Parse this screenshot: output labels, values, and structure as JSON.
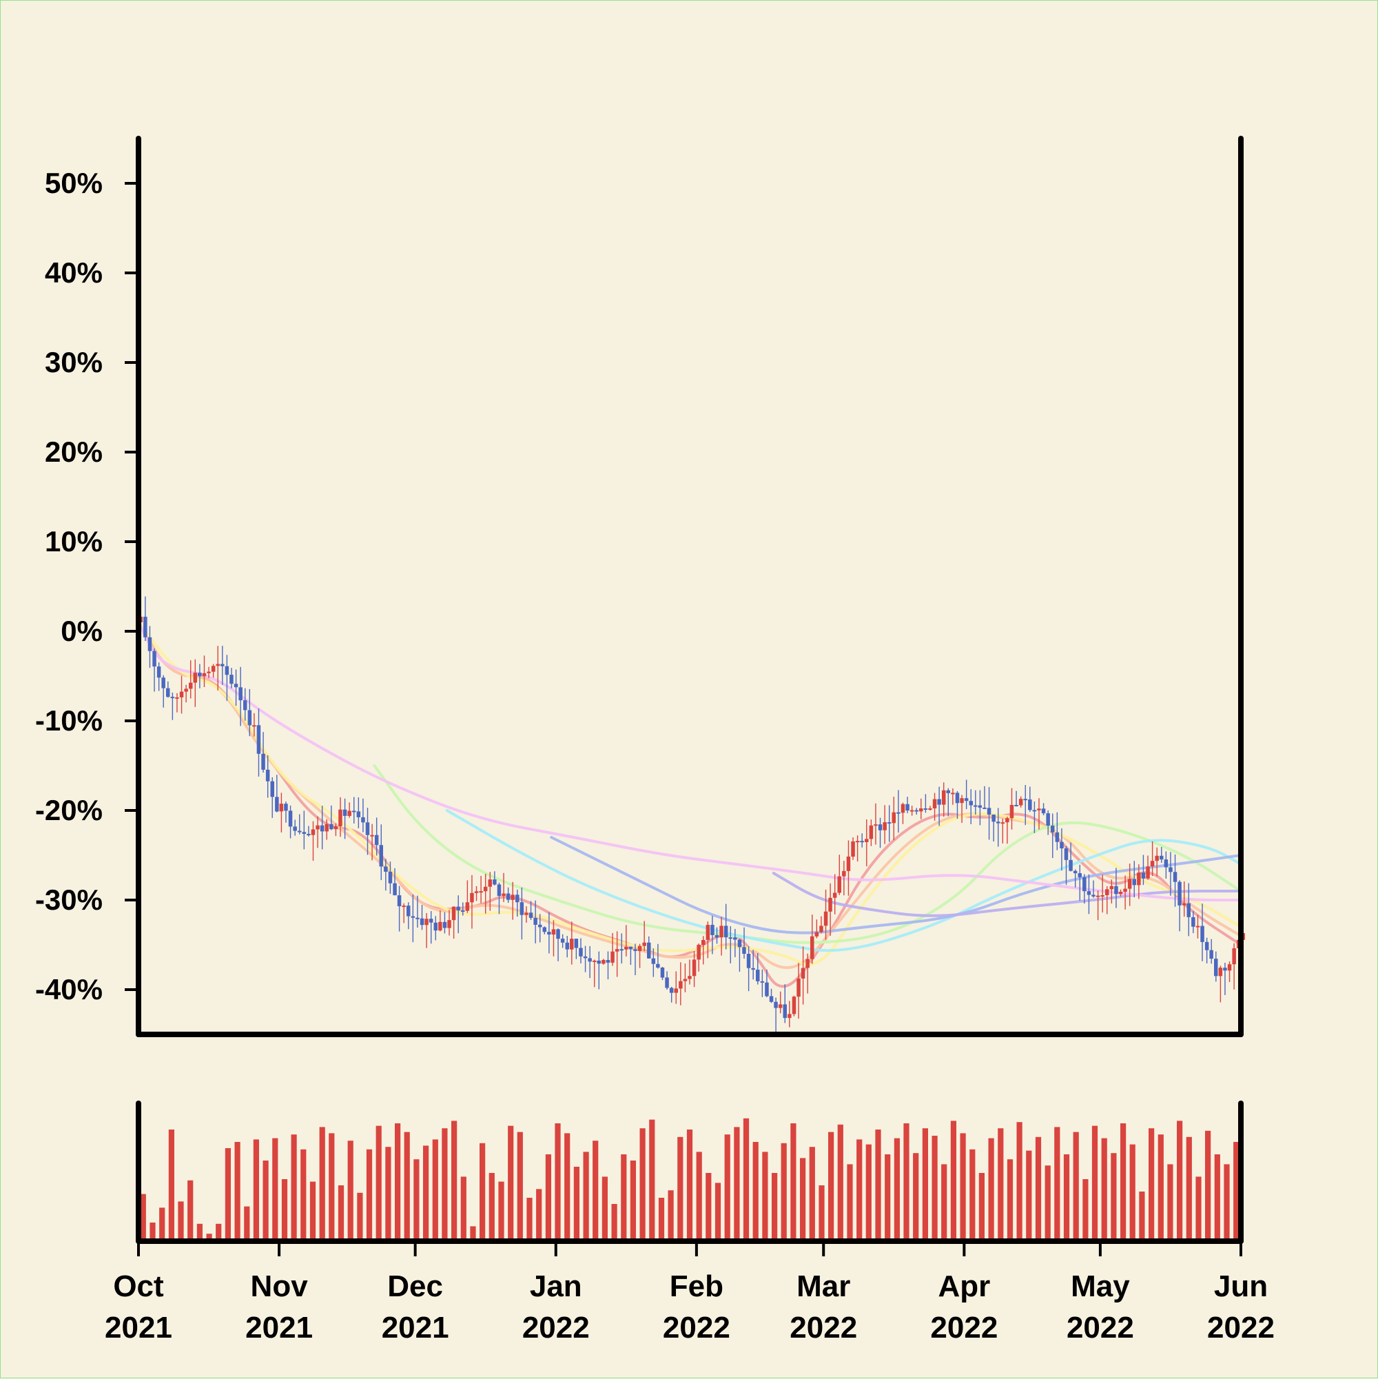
{
  "colors": {
    "background": "#f7f1e0",
    "border": "#8fe58f",
    "up": "#d9443e",
    "down": "#4a68c0",
    "volume": "#d9443e",
    "axis": "#000000"
  },
  "chart_data": [
    {
      "type": "candlestick",
      "panel": "price",
      "title": "",
      "xlabel": "",
      "ylabel": "",
      "xlim": [
        "2021-10-01",
        "2022-06-01"
      ],
      "ylim": [
        -45,
        55
      ],
      "y_ticks": [
        50,
        40,
        30,
        20,
        10,
        0,
        -10,
        -20,
        -30,
        -40
      ],
      "y_tick_labels": [
        "50%",
        "40%",
        "30%",
        "20%",
        "10%",
        "0%",
        "-10%",
        "-20%",
        "-30%",
        "-40%"
      ],
      "x_ticks": [
        "2021-10-01",
        "2021-11-01",
        "2021-12-01",
        "2022-01-01",
        "2022-02-01",
        "2022-03-01",
        "2022-04-01",
        "2022-05-01",
        "2022-06-01"
      ],
      "x_tick_labels": [
        [
          "Oct",
          "2021"
        ],
        [
          "Nov",
          "2021"
        ],
        [
          "Dec",
          "2021"
        ],
        [
          "Jan",
          "2022"
        ],
        [
          "Feb",
          "2022"
        ],
        [
          "Mar",
          "2022"
        ],
        [
          "Apr",
          "2022"
        ],
        [
          "May",
          "2022"
        ],
        [
          "Jun",
          "2022"
        ]
      ],
      "grid": false,
      "legend": "none",
      "price_path": [
        [
          "2021-10-01",
          1
        ],
        [
          "2021-10-05",
          -5
        ],
        [
          "2021-10-08",
          -8
        ],
        [
          "2021-10-12",
          -5
        ],
        [
          "2021-10-18",
          -4
        ],
        [
          "2021-10-22",
          -6
        ],
        [
          "2021-10-26",
          -11
        ],
        [
          "2021-10-30",
          -19
        ],
        [
          "2021-11-05",
          -22
        ],
        [
          "2021-11-10",
          -22
        ],
        [
          "2021-11-16",
          -20
        ],
        [
          "2021-11-22",
          -24
        ],
        [
          "2021-11-26",
          -30
        ],
        [
          "2021-12-01",
          -32
        ],
        [
          "2021-12-06",
          -33
        ],
        [
          "2021-12-10",
          -31
        ],
        [
          "2021-12-16",
          -28
        ],
        [
          "2021-12-22",
          -30
        ],
        [
          "2021-12-28",
          -33
        ],
        [
          "2022-01-04",
          -35
        ],
        [
          "2022-01-10",
          -37
        ],
        [
          "2022-01-15",
          -36
        ],
        [
          "2022-01-20",
          -35
        ],
        [
          "2022-01-26",
          -40
        ],
        [
          "2022-01-30",
          -38
        ],
        [
          "2022-02-03",
          -33
        ],
        [
          "2022-02-08",
          -34
        ],
        [
          "2022-02-13",
          -38
        ],
        [
          "2022-02-18",
          -42
        ],
        [
          "2022-02-21",
          -43
        ],
        [
          "2022-02-25",
          -36
        ],
        [
          "2022-03-02",
          -30
        ],
        [
          "2022-03-07",
          -24
        ],
        [
          "2022-03-12",
          -22
        ],
        [
          "2022-03-18",
          -20
        ],
        [
          "2022-03-24",
          -19
        ],
        [
          "2022-03-29",
          -18
        ],
        [
          "2022-04-03",
          -20
        ],
        [
          "2022-04-08",
          -21
        ],
        [
          "2022-04-13",
          -19
        ],
        [
          "2022-04-18",
          -20
        ],
        [
          "2022-04-24",
          -26
        ],
        [
          "2022-04-29",
          -30
        ],
        [
          "2022-05-04",
          -29
        ],
        [
          "2022-05-10",
          -27
        ],
        [
          "2022-05-14",
          -25
        ],
        [
          "2022-05-18",
          -30
        ],
        [
          "2022-05-22",
          -33
        ],
        [
          "2022-05-26",
          -38
        ],
        [
          "2022-05-29",
          -37
        ],
        [
          "2022-06-01",
          -33
        ]
      ],
      "moving_averages": [
        {
          "color": "#f2a0a0",
          "points": [
            [
              "2021-10-01",
              1
            ],
            [
              "2021-10-08",
              -5
            ],
            [
              "2021-10-18",
              -5
            ],
            [
              "2021-10-28",
              -13
            ],
            [
              "2021-11-10",
              -22
            ],
            [
              "2021-11-20",
              -22
            ],
            [
              "2021-12-01",
              -31
            ],
            [
              "2021-12-14",
              -31
            ],
            [
              "2021-12-22",
              -29
            ],
            [
              "2022-01-05",
              -33
            ],
            [
              "2022-01-18",
              -35
            ],
            [
              "2022-01-28",
              -37
            ],
            [
              "2022-02-08",
              -33
            ],
            [
              "2022-02-14",
              -36
            ],
            [
              "2022-02-20",
              -41
            ],
            [
              "2022-03-01",
              -35
            ],
            [
              "2022-03-12",
              -25
            ],
            [
              "2022-03-25",
              -20
            ],
            [
              "2022-04-05",
              -21
            ],
            [
              "2022-04-16",
              -20
            ],
            [
              "2022-04-25",
              -25
            ],
            [
              "2022-05-04",
              -29
            ],
            [
              "2022-05-12",
              -26
            ],
            [
              "2022-05-20",
              -31
            ],
            [
              "2022-06-01",
              -35
            ]
          ]
        },
        {
          "color": "#fbc6a4",
          "points": [
            [
              "2021-10-01",
              1
            ],
            [
              "2021-10-08",
              -5
            ],
            [
              "2021-10-18",
              -5
            ],
            [
              "2021-10-30",
              -15
            ],
            [
              "2021-11-12",
              -21
            ],
            [
              "2021-11-24",
              -26
            ],
            [
              "2021-12-05",
              -32
            ],
            [
              "2021-12-18",
              -30
            ],
            [
              "2022-01-02",
              -33
            ],
            [
              "2022-01-15",
              -35
            ],
            [
              "2022-01-30",
              -37
            ],
            [
              "2022-02-10",
              -34
            ],
            [
              "2022-02-22",
              -39
            ],
            [
              "2022-03-05",
              -32
            ],
            [
              "2022-03-18",
              -24
            ],
            [
              "2022-03-30",
              -20
            ],
            [
              "2022-04-12",
              -21
            ],
            [
              "2022-04-22",
              -22
            ],
            [
              "2022-05-02",
              -28
            ],
            [
              "2022-05-12",
              -27
            ],
            [
              "2022-05-22",
              -31
            ],
            [
              "2022-06-01",
              -34
            ]
          ]
        },
        {
          "color": "#fdf0a0",
          "points": [
            [
              "2021-10-01",
              1
            ],
            [
              "2021-10-10",
              -5
            ],
            [
              "2021-10-20",
              -6
            ],
            [
              "2021-11-02",
              -17
            ],
            [
              "2021-11-15",
              -21
            ],
            [
              "2021-11-28",
              -28
            ],
            [
              "2021-12-10",
              -32
            ],
            [
              "2021-12-25",
              -31
            ],
            [
              "2022-01-10",
              -34
            ],
            [
              "2022-01-25",
              -36
            ],
            [
              "2022-02-08",
              -35
            ],
            [
              "2022-02-20",
              -36
            ],
            [
              "2022-02-28",
              -38
            ],
            [
              "2022-03-10",
              -30
            ],
            [
              "2022-03-22",
              -23
            ],
            [
              "2022-04-02",
              -20
            ],
            [
              "2022-04-15",
              -21
            ],
            [
              "2022-04-28",
              -24
            ],
            [
              "2022-05-10",
              -28
            ],
            [
              "2022-05-22",
              -30
            ],
            [
              "2022-06-01",
              -33
            ]
          ]
        },
        {
          "color": "#c9f5b0",
          "points": [
            [
              "2021-11-22",
              -15
            ],
            [
              "2021-12-02",
              -22
            ],
            [
              "2021-12-15",
              -27
            ],
            [
              "2022-01-01",
              -30
            ],
            [
              "2022-01-20",
              -33
            ],
            [
              "2022-02-10",
              -34
            ],
            [
              "2022-02-25",
              -35
            ],
            [
              "2022-03-15",
              -34
            ],
            [
              "2022-03-30",
              -30
            ],
            [
              "2022-04-10",
              -24
            ],
            [
              "2022-04-22",
              -21
            ],
            [
              "2022-05-05",
              -22
            ],
            [
              "2022-05-20",
              -25
            ],
            [
              "2022-06-01",
              -29
            ]
          ]
        },
        {
          "color": "#a5ecf8",
          "points": [
            [
              "2021-12-08",
              -20
            ],
            [
              "2021-12-25",
              -25
            ],
            [
              "2022-01-10",
              -29
            ],
            [
              "2022-02-01",
              -33
            ],
            [
              "2022-02-20",
              -35
            ],
            [
              "2022-03-05",
              -36
            ],
            [
              "2022-03-25",
              -33
            ],
            [
              "2022-04-10",
              -29
            ],
            [
              "2022-04-30",
              -25
            ],
            [
              "2022-05-12",
              -23
            ],
            [
              "2022-05-25",
              -24
            ],
            [
              "2022-06-01",
              -26
            ]
          ]
        },
        {
          "color": "#a6b8ef",
          "points": [
            [
              "2021-12-31",
              -23
            ],
            [
              "2022-01-20",
              -28
            ],
            [
              "2022-02-05",
              -32
            ],
            [
              "2022-02-22",
              -34
            ],
            [
              "2022-03-10",
              -33
            ],
            [
              "2022-03-30",
              -32
            ],
            [
              "2022-04-15",
              -29
            ],
            [
              "2022-05-01",
              -27
            ],
            [
              "2022-05-18",
              -26
            ],
            [
              "2022-06-01",
              -25
            ]
          ]
        },
        {
          "color": "#b9b0ef",
          "points": [
            [
              "2022-02-18",
              -27
            ],
            [
              "2022-02-28",
              -30
            ],
            [
              "2022-03-10",
              -31
            ],
            [
              "2022-03-25",
              -32
            ],
            [
              "2022-04-10",
              -31
            ],
            [
              "2022-04-30",
              -30
            ],
            [
              "2022-05-15",
              -29
            ],
            [
              "2022-06-01",
              -29
            ]
          ]
        },
        {
          "color": "#f3c2f5",
          "points": [
            [
              "2021-10-01",
              1
            ],
            [
              "2021-10-06",
              -4
            ],
            [
              "2021-10-18",
              -5
            ],
            [
              "2021-10-28",
              -9
            ],
            [
              "2021-11-10",
              -13
            ],
            [
              "2021-11-25",
              -17
            ],
            [
              "2021-12-15",
              -21
            ],
            [
              "2022-01-05",
              -23
            ],
            [
              "2022-01-25",
              -25
            ],
            [
              "2022-02-10",
              -26
            ],
            [
              "2022-02-25",
              -27
            ],
            [
              "2022-03-10",
              -28
            ],
            [
              "2022-03-30",
              -27
            ],
            [
              "2022-04-15",
              -28
            ],
            [
              "2022-05-01",
              -29
            ],
            [
              "2022-05-20",
              -30
            ],
            [
              "2022-06-01",
              -30
            ]
          ]
        }
      ]
    },
    {
      "type": "bar",
      "panel": "volume",
      "title": "",
      "xlabel": "",
      "ylabel": "",
      "xlim": [
        "2021-10-01",
        "2022-06-01"
      ],
      "ylim": [
        0,
        1
      ],
      "color": "#d9443e",
      "levels": [
        0.38,
        0.15,
        0.27,
        0.9,
        0.32,
        0.49,
        0.14,
        0.06,
        0.14,
        0.75,
        0.8,
        0.28,
        0.82,
        0.65,
        0.83,
        0.5,
        0.86,
        0.74,
        0.48,
        0.92,
        0.87,
        0.45,
        0.81,
        0.39,
        0.74,
        0.93,
        0.76,
        0.95,
        0.88,
        0.66,
        0.77,
        0.82,
        0.91,
        0.97,
        0.52,
        0.12,
        0.79,
        0.55,
        0.48,
        0.93,
        0.88,
        0.35,
        0.42,
        0.7,
        0.95,
        0.87,
        0.6,
        0.72,
        0.81,
        0.52,
        0.3,
        0.7,
        0.65,
        0.91,
        0.98,
        0.35,
        0.41,
        0.84,
        0.9,
        0.72,
        0.55,
        0.47,
        0.86,
        0.92,
        0.99,
        0.8,
        0.72,
        0.55,
        0.79,
        0.95,
        0.67,
        0.76,
        0.45,
        0.88,
        0.94,
        0.62,
        0.82,
        0.78,
        0.9,
        0.7,
        0.83,
        0.95,
        0.71,
        0.91,
        0.85,
        0.62,
        0.97,
        0.87,
        0.74,
        0.55,
        0.83,
        0.91,
        0.66,
        0.96,
        0.73,
        0.84,
        0.61,
        0.92,
        0.7,
        0.88,
        0.5,
        0.93,
        0.83,
        0.71,
        0.95,
        0.78,
        0.4,
        0.91,
        0.86,
        0.62,
        0.97,
        0.84,
        0.52,
        0.89,
        0.7,
        0.62,
        0.8
      ]
    }
  ]
}
